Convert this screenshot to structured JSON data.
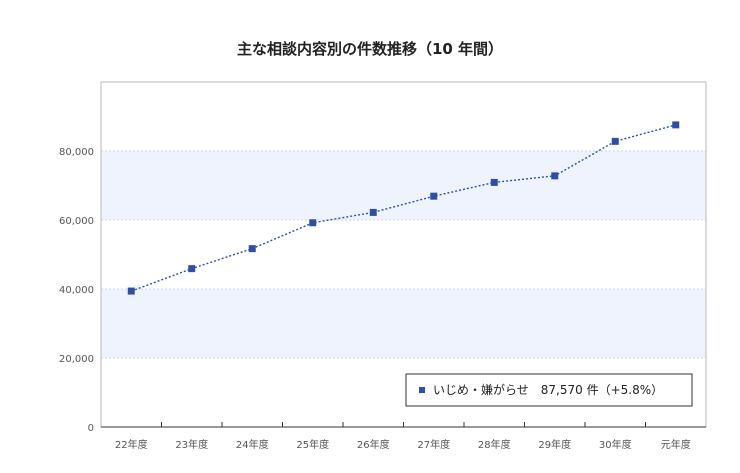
{
  "chart_data": {
    "type": "line",
    "title": "主な相談内容別の件数推移（10 年間）",
    "categories": [
      "22年度",
      "23年度",
      "24年度",
      "25年度",
      "26年度",
      "27年度",
      "28年度",
      "29年度",
      "30年度",
      "元年度"
    ],
    "series": [
      {
        "name": "いじめ・嫌がらせ　87,570 件（+5.8%）",
        "values": [
          39400,
          45900,
          51700,
          59200,
          62200,
          66900,
          70900,
          72800,
          82800,
          87570
        ],
        "color": "#2e4fa3"
      }
    ],
    "y_ticks": [
      "0",
      "20,000",
      "40,000",
      "60,000",
      "80,000"
    ],
    "ylim": [
      0,
      100000
    ],
    "grid": true,
    "band_color": "#eef3fd",
    "legend_position": "bottom-right"
  }
}
